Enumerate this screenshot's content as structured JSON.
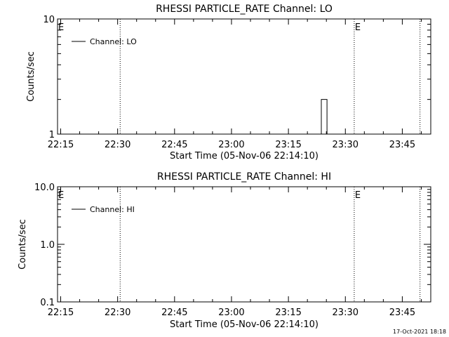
{
  "chart_data": [
    {
      "type": "line",
      "title": "RHESSI PARTICLE_RATE Channel: LO",
      "xlabel": "Start Time (05-Nov-06 22:14:10)",
      "ylabel": "Counts/sec",
      "y_scale": "log",
      "ylim": [
        1,
        10
      ],
      "y_tick_labels": [
        "1",
        "10"
      ],
      "x_tick_labels": [
        "22:15",
        "22:30",
        "22:45",
        "23:00",
        "23:15",
        "23:30",
        "23:45"
      ],
      "xlim": [
        "22:14:10",
        "23:52:30"
      ],
      "legend": {
        "entries": [
          "Channel: LO"
        ],
        "placement": "top-left"
      },
      "grid": false,
      "event_markers": [
        {
          "time": "22:14:10",
          "label": "E"
        },
        {
          "time": "22:30:40",
          "label": ""
        },
        {
          "time": "23:32:20",
          "label": "E"
        },
        {
          "time": "23:49:40",
          "label": ""
        }
      ],
      "series": [
        {
          "name": "Channel: LO",
          "x": [
            "23:23:40",
            "23:23:40",
            "23:24:10",
            "23:24:40",
            "23:25:10",
            "23:25:10"
          ],
          "y": [
            1,
            2,
            2,
            2,
            2,
            1
          ]
        }
      ]
    },
    {
      "type": "line",
      "title": "RHESSI PARTICLE_RATE Channel: HI",
      "xlabel": "Start Time (05-Nov-06 22:14:10)",
      "ylabel": "Counts/sec",
      "y_scale": "log",
      "ylim": [
        0.1,
        10
      ],
      "y_tick_labels": [
        "0.1",
        "1.0",
        "10.0"
      ],
      "x_tick_labels": [
        "22:15",
        "22:30",
        "22:45",
        "23:00",
        "23:15",
        "23:30",
        "23:45"
      ],
      "xlim": [
        "22:14:10",
        "23:52:30"
      ],
      "legend": {
        "entries": [
          "Channel: HI"
        ],
        "placement": "top-left"
      },
      "grid": false,
      "event_markers": [
        {
          "time": "22:14:10",
          "label": "E"
        },
        {
          "time": "22:30:40",
          "label": ""
        },
        {
          "time": "23:32:20",
          "label": "E"
        },
        {
          "time": "23:49:40",
          "label": ""
        }
      ],
      "series": [
        {
          "name": "Channel: HI",
          "x": [],
          "y": []
        }
      ]
    }
  ],
  "footer": {
    "date": "17-Oct-2021 18:18"
  }
}
